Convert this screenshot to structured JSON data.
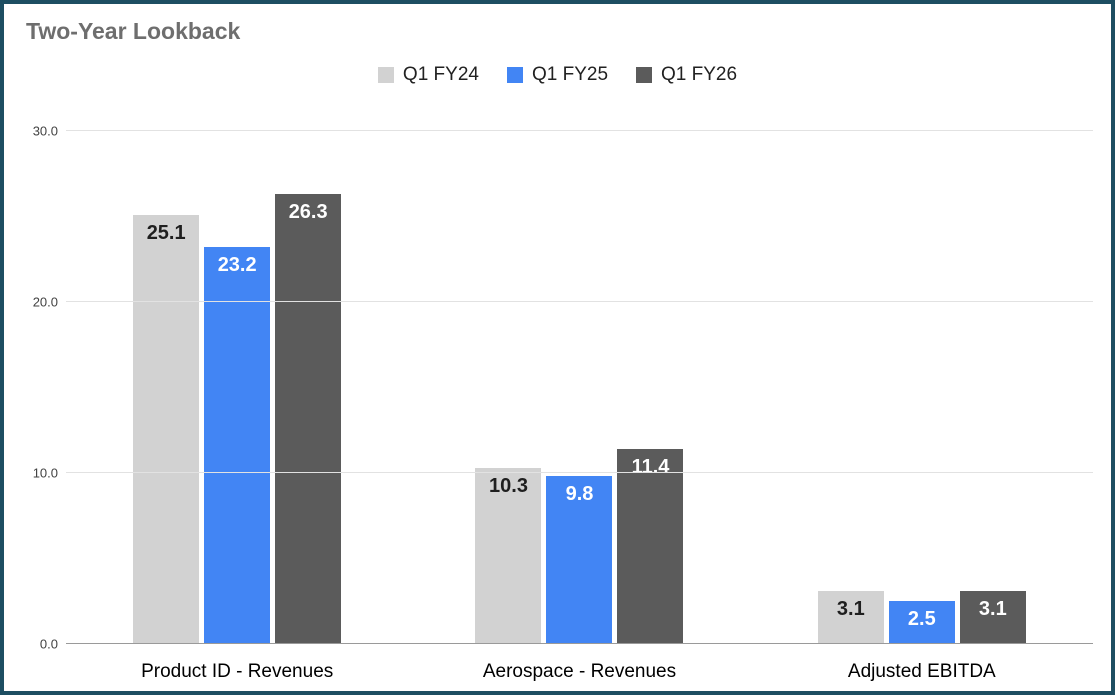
{
  "title": "Two-Year Lookback",
  "chart_data": {
    "type": "bar",
    "title": "Two-Year Lookback",
    "categories": [
      "Product ID - Revenues",
      "Aerospace - Revenues",
      "Adjusted EBITDA"
    ],
    "series": [
      {
        "name": "Q1 FY24",
        "color": "#d2d2d2",
        "label_color": "#1f1f1f",
        "values": [
          25.1,
          10.3,
          3.1
        ]
      },
      {
        "name": "Q1 FY25",
        "color": "#4285f4",
        "label_color": "#ffffff",
        "values": [
          23.2,
          9.8,
          2.5
        ]
      },
      {
        "name": "Q1 FY26",
        "color": "#5b5b5b",
        "label_color": "#ffffff",
        "values": [
          26.3,
          11.4,
          3.1
        ]
      }
    ],
    "ylim": [
      0,
      30
    ],
    "yticks": [
      {
        "value": 0,
        "label": "0.0"
      },
      {
        "value": 10,
        "label": "10.0"
      },
      {
        "value": 20,
        "label": "20.0"
      },
      {
        "value": 30,
        "label": "30.0"
      }
    ],
    "grid": true,
    "legend_position": "top-center",
    "value_label_decimals": 1
  },
  "colors": {
    "frame_border": "#1d4e62",
    "title_text": "#6e6e6e",
    "gridline": "#e2e2e2",
    "baseline": "#9a9a9a",
    "tick_text": "#424242",
    "category_text": "#000000",
    "background": "#ffffff"
  }
}
